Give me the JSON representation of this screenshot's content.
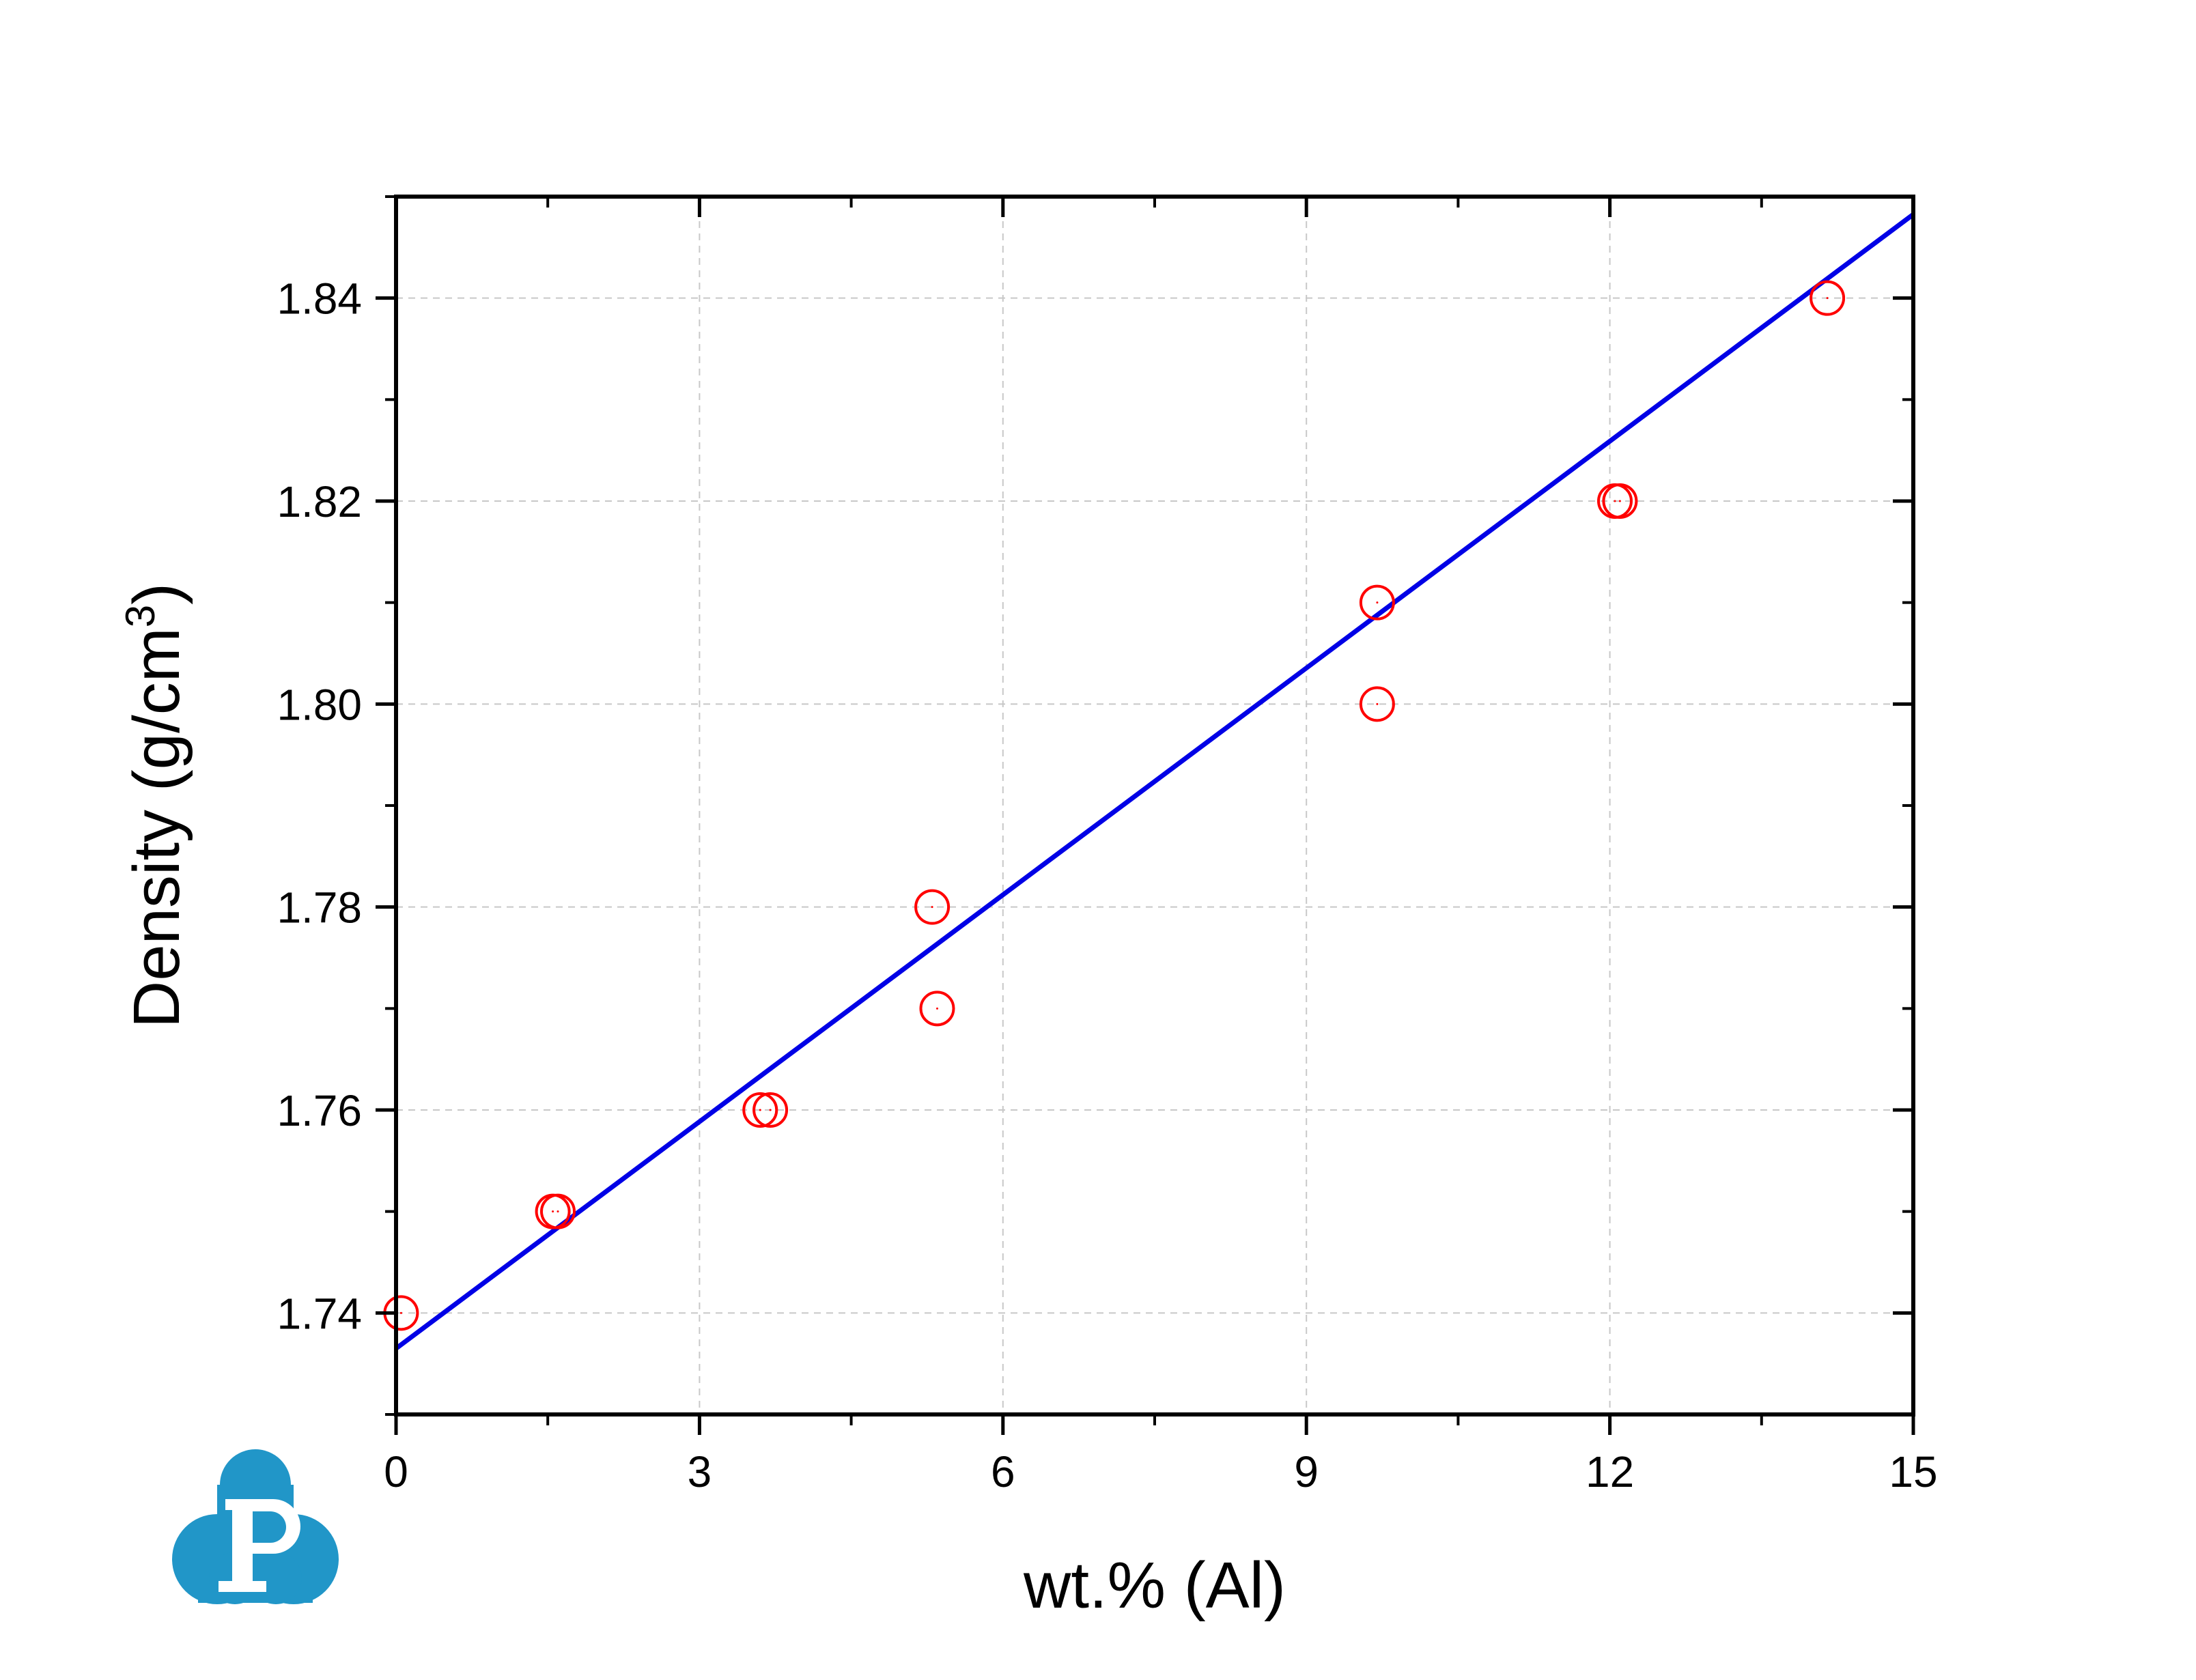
{
  "chart_data": {
    "type": "scatter",
    "xlabel": "wt.% (Al)",
    "ylabel_main": "Density (g/cm",
    "ylabel_sup": "3",
    "ylabel_close": ")",
    "xlim": [
      0,
      15
    ],
    "ylim": [
      1.73,
      1.85
    ],
    "xticks": [
      0,
      3,
      6,
      9,
      12,
      15
    ],
    "xtick_labels": [
      "0",
      "3",
      "6",
      "9",
      "12",
      "15"
    ],
    "yticks": [
      1.74,
      1.76,
      1.78,
      1.8,
      1.82,
      1.84
    ],
    "ytick_labels": [
      "1.74",
      "1.76",
      "1.78",
      "1.80",
      "1.82",
      "1.84"
    ],
    "grid": true,
    "points": [
      {
        "x": 0.05,
        "y": 1.74
      },
      {
        "x": 1.55,
        "y": 1.75
      },
      {
        "x": 1.6,
        "y": 1.75
      },
      {
        "x": 3.6,
        "y": 1.76
      },
      {
        "x": 3.7,
        "y": 1.76
      },
      {
        "x": 5.3,
        "y": 1.78
      },
      {
        "x": 5.35,
        "y": 1.77
      },
      {
        "x": 9.7,
        "y": 1.81
      },
      {
        "x": 9.7,
        "y": 1.8
      },
      {
        "x": 12.05,
        "y": 1.82
      },
      {
        "x": 12.1,
        "y": 1.82
      },
      {
        "x": 14.15,
        "y": 1.84
      }
    ],
    "fit_line": {
      "intercept": 1.7365,
      "slope": 0.00745
    },
    "colors": {
      "points": "#ff0000",
      "fit": "#0000e6",
      "grid": "#c8c8c8",
      "logo": "#2196c8"
    }
  }
}
